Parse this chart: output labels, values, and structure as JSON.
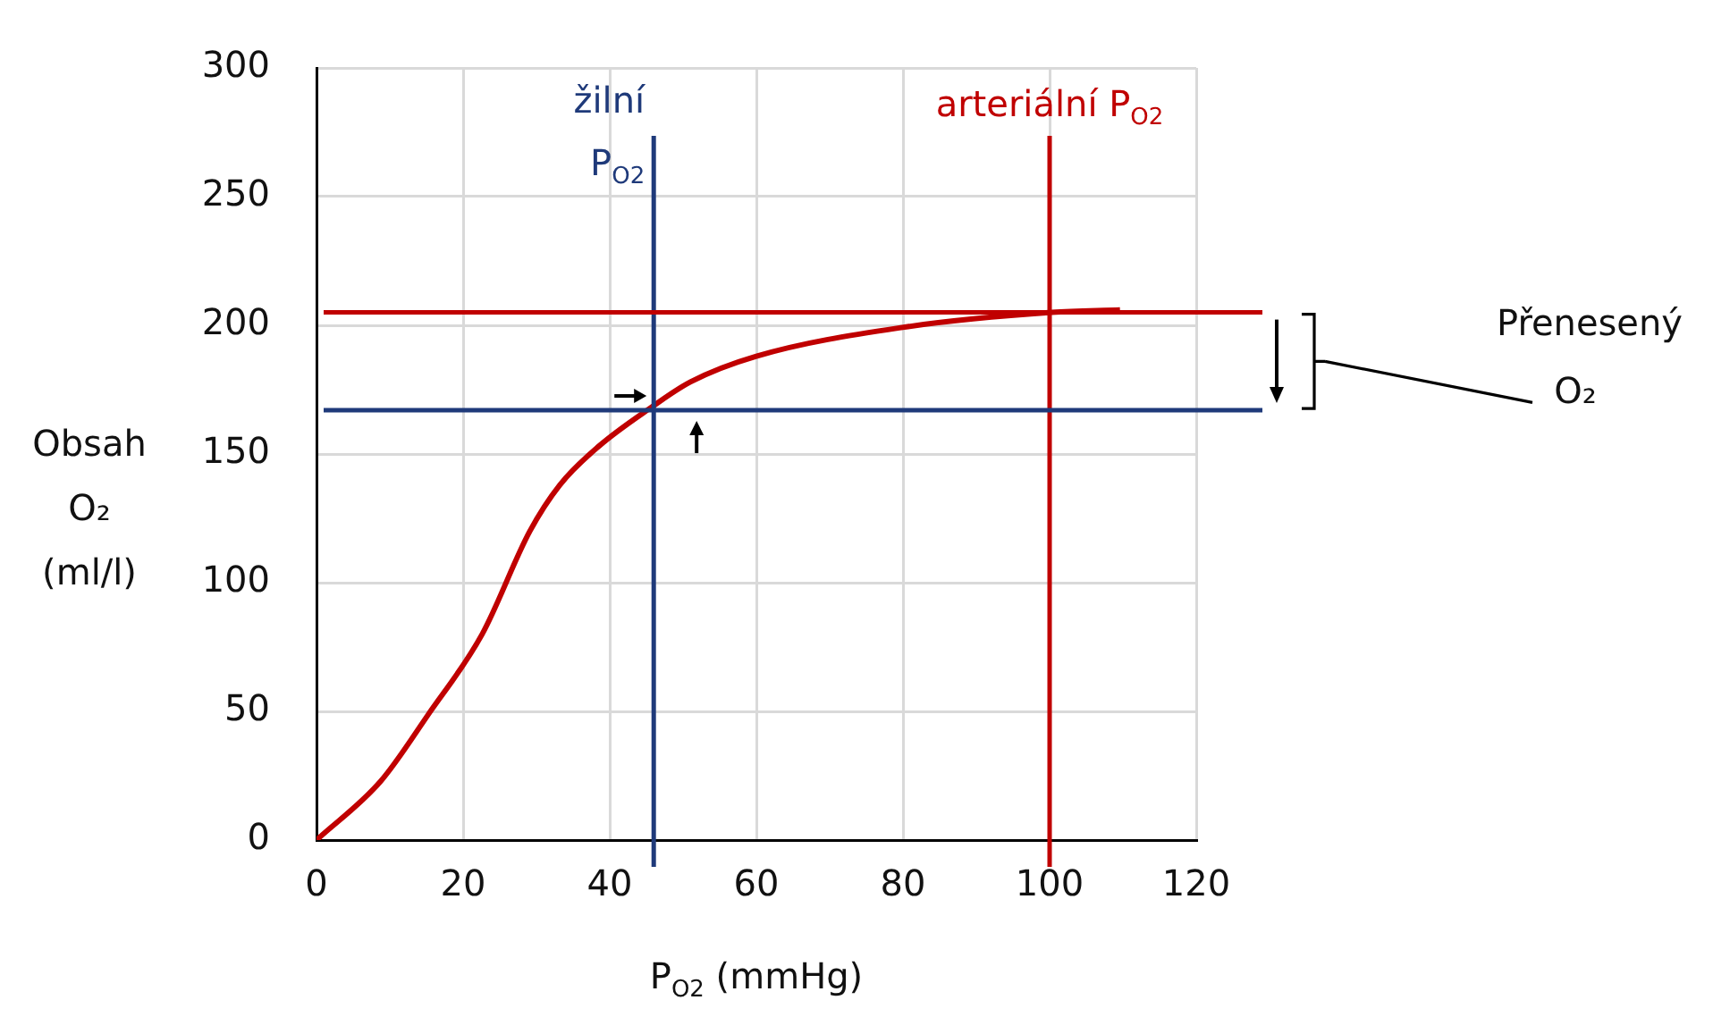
{
  "chart_data": {
    "type": "line",
    "xlabel": "P$_{O2}$ (mmHg)",
    "ylabel": "Obsah O₂ (ml/l)",
    "series": [
      {
        "color": "#c00000",
        "x": [
          0,
          8.8,
          15.3,
          22.6,
          29.1,
          33.2,
          38.5,
          45.6,
          51,
          60,
          79.5,
          100.3,
          109.6
        ],
        "values": [
          0,
          23,
          49,
          80,
          120,
          138,
          153,
          168,
          178,
          188,
          199,
          205,
          206
        ]
      }
    ],
    "xlim": [
      0,
      120
    ],
    "xticks": [
      0,
      20,
      40,
      60,
      80,
      100,
      120
    ],
    "ylim": [
      0,
      300
    ],
    "yticks": [
      0,
      50,
      100,
      150,
      200,
      250,
      300
    ],
    "grid": true,
    "marker": "none",
    "line_style": "solid",
    "ref_lines": [
      {
        "axis": "x",
        "value": 46,
        "label": "žilní P$_{O2}$",
        "color": "#1f3a7a"
      },
      {
        "axis": "x",
        "value": 100,
        "label": "arteriální P$_{O2}$",
        "color": "#c00000"
      },
      {
        "axis": "y",
        "value": 205,
        "color": "#c00000"
      },
      {
        "axis": "y",
        "value": 167,
        "color": "#1f3a7a"
      }
    ],
    "annotations": [
      "Přenesený O₂"
    ]
  }
}
